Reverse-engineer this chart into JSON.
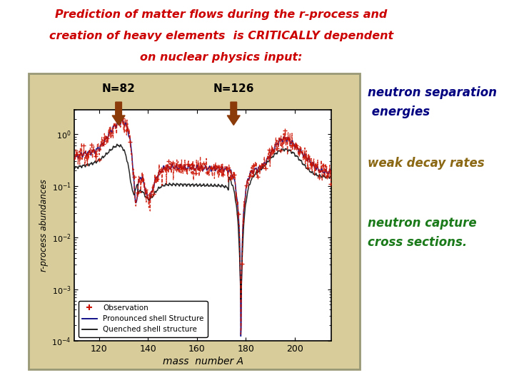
{
  "title_line1": "Prediction of matter flows during the r-process and",
  "title_line2": "creation of heavy elements  is CRITICALLY dependent",
  "title_line3": "on nuclear physics input:",
  "title_color": "#cc0000",
  "bg_color": "#ffffff",
  "panel_outer_bg": "#d8cc9a",
  "panel_inner_bg": "#ffffff",
  "n82_label": "N=82",
  "n126_label": "N=126",
  "arrow_color": "#8B3A0A",
  "xlabel": "mass  number A",
  "ylabel": "r-process abundances",
  "text_neutron_sep_line1": "neutron separation",
  "text_neutron_sep_line2": " energies",
  "text_neutron_sep_color": "#000080",
  "text_weak_decay": "weak decay rates",
  "text_weak_decay_color": "#8B6914",
  "text_neutron_cap_line1": "neutron capture",
  "text_neutron_cap_line2": "cross sections.",
  "text_neutron_cap_color": "#1a7a1a",
  "legend_obs": "Observation",
  "legend_blue": "Pronounced shell Structure",
  "legend_black": "Quenched shell structure",
  "xlim": [
    110,
    215
  ],
  "xticks": [
    120,
    140,
    160,
    180,
    200
  ],
  "obs_color": "#cc1100",
  "blue_color": "#000080",
  "black_color": "#111111"
}
